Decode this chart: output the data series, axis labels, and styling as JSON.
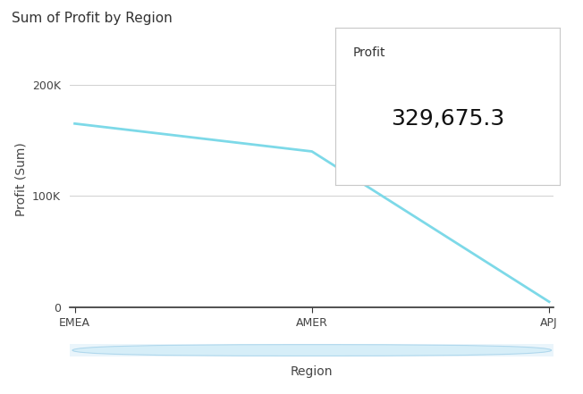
{
  "title": "Sum of Profit by Region",
  "xlabel": "Region",
  "ylabel": "Profit (Sum)",
  "regions": [
    "EMEA",
    "AMER",
    "APJ"
  ],
  "values": [
    165000,
    140000,
    5000
  ],
  "line_color": "#7DD9E8",
  "fill_color": "#C8ECF5",
  "fill_alpha": 0.35,
  "yticks": [
    0,
    100000,
    200000
  ],
  "ytick_labels": [
    "0",
    "100K",
    "200K"
  ],
  "ylim": [
    0,
    230000
  ],
  "grid_color": "#d0d0d0",
  "bg_color": "#ffffff",
  "tooltip_label": "Profit",
  "tooltip_value": "329,675.3",
  "title_fontsize": 11,
  "axis_label_fontsize": 10,
  "tick_fontsize": 9,
  "tooltip_label_fontsize": 10,
  "tooltip_value_fontsize": 18,
  "line_width": 2.0,
  "scrollbar_fill": "#D6EEF8",
  "scrollbar_edge": "#B0D8ED"
}
